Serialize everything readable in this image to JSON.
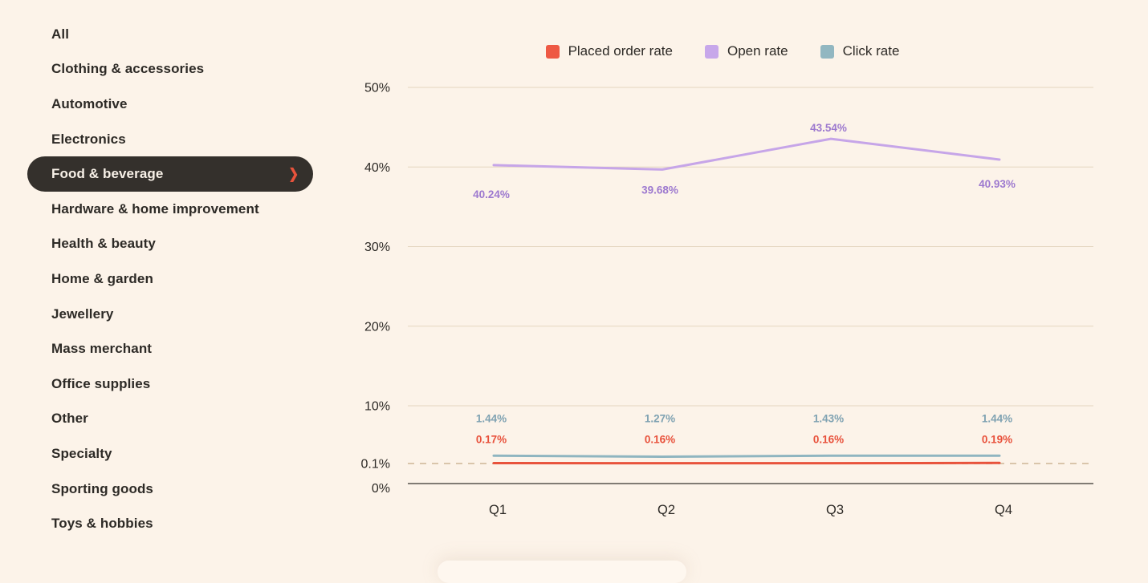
{
  "sidebar": {
    "selected_icon": "❯",
    "items": [
      {
        "label": "All",
        "selected": false
      },
      {
        "label": "Clothing & accessories",
        "selected": false
      },
      {
        "label": "Automotive",
        "selected": false
      },
      {
        "label": "Electronics",
        "selected": false
      },
      {
        "label": "Food & beverage",
        "selected": true
      },
      {
        "label": "Hardware & home improvement",
        "selected": false
      },
      {
        "label": "Health & beauty",
        "selected": false
      },
      {
        "label": "Home & garden",
        "selected": false
      },
      {
        "label": "Jewellery",
        "selected": false
      },
      {
        "label": "Mass merchant",
        "selected": false
      },
      {
        "label": "Office supplies",
        "selected": false
      },
      {
        "label": "Other",
        "selected": false
      },
      {
        "label": "Specialty",
        "selected": false
      },
      {
        "label": "Sporting goods",
        "selected": false
      },
      {
        "label": "Toys & hobbies",
        "selected": false
      }
    ]
  },
  "legend": [
    {
      "label": "Placed order rate",
      "color": "#EE5944"
    },
    {
      "label": "Open rate",
      "color": "#C7A7EA"
    },
    {
      "label": "Click rate",
      "color": "#92B7C1"
    }
  ],
  "colors": {
    "page_background": "#FCF3E9",
    "selected_pill_background": "#34302C",
    "selected_pill_text": "#F8F1E8",
    "accent_red": "#E8533C",
    "gridline": "#E4D6C0",
    "dashed_threshold": "#D9C5AB",
    "axis_line": "#6F6A63"
  },
  "chart_data": {
    "type": "line",
    "categories": [
      "Q1",
      "Q2",
      "Q3",
      "Q4"
    ],
    "series": [
      {
        "name": "Placed order rate",
        "values": [
          0.17,
          0.16,
          0.16,
          0.19
        ],
        "labels": [
          "0.17%",
          "0.16%",
          "0.16%",
          "0.19%"
        ],
        "line_color": "#E8533C",
        "label_color": "#E8503A"
      },
      {
        "name": "Open rate",
        "values": [
          40.24,
          39.68,
          43.54,
          40.93
        ],
        "labels": [
          "40.24%",
          "39.68%",
          "43.54%",
          "40.93%"
        ],
        "line_color": "#C6A5E8",
        "label_color": "#9D79CF"
      },
      {
        "name": "Click rate",
        "values": [
          1.44,
          1.27,
          1.43,
          1.44
        ],
        "labels": [
          "1.44%",
          "1.27%",
          "1.43%",
          "1.44%"
        ],
        "line_color": "#8FB5C0",
        "label_color": "#7FA2B2"
      }
    ],
    "y_ticks": [
      "50%",
      "40%",
      "30%",
      "20%",
      "10%",
      "0.1%",
      "0%"
    ],
    "y_tick_values": [
      50,
      40,
      30,
      20,
      10,
      0.1,
      0
    ],
    "ylim": [
      0,
      50
    ],
    "grid": true,
    "threshold_line_value": 0.1,
    "legend_position": "top"
  }
}
